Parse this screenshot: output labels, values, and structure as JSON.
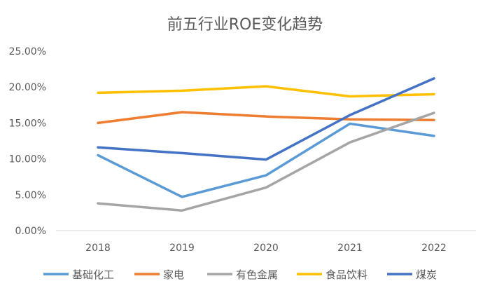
{
  "chart_data": {
    "type": "line",
    "title": "前五行业ROE变化趋势",
    "categories": [
      "2018",
      "2019",
      "2020",
      "2021",
      "2022"
    ],
    "ylim": [
      0,
      25
    ],
    "yticks": [
      "0.00%",
      "5.00%",
      "10.00%",
      "15.00%",
      "20.00%",
      "25.00%"
    ],
    "grid": false,
    "legend_position": "bottom",
    "series": [
      {
        "name": "基础化工",
        "color": "#5B9BD5",
        "values": [
          10.5,
          4.7,
          7.7,
          14.9,
          13.2
        ]
      },
      {
        "name": "家电",
        "color": "#ED7D31",
        "values": [
          15.0,
          16.5,
          15.9,
          15.5,
          15.4
        ]
      },
      {
        "name": "有色金属",
        "color": "#A5A5A5",
        "values": [
          3.8,
          2.8,
          6.0,
          12.3,
          16.4
        ]
      },
      {
        "name": "食品饮料",
        "color": "#FFC000",
        "values": [
          19.2,
          19.5,
          20.1,
          18.7,
          19.0
        ]
      },
      {
        "name": "煤炭",
        "color": "#4472C4",
        "values": [
          11.6,
          10.8,
          9.9,
          16.1,
          21.2
        ]
      }
    ]
  }
}
